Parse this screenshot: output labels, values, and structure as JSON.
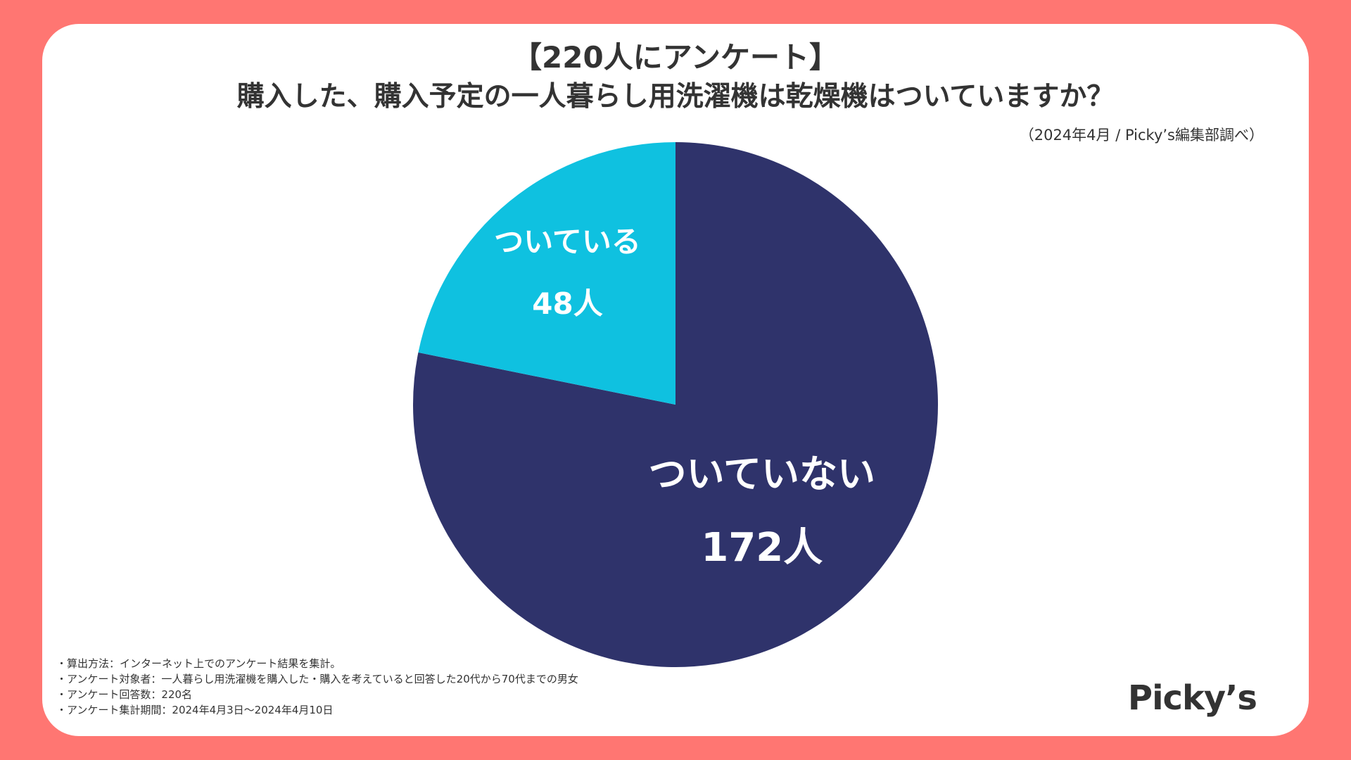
{
  "header": {
    "title_line1": "【220人にアンケート】",
    "title_line2": "購入した、購入予定の一人暮らし用洗濯機は乾燥機はついていますか？",
    "source": "（2024年4月 / Picky’s編集部調べ）"
  },
  "chart_data": {
    "type": "pie",
    "title": "購入した、購入予定の一人暮らし用洗濯機は乾燥機はついていますか？",
    "slices": [
      {
        "label": "ついていない",
        "value": 172,
        "value_label": "172人",
        "color": "#2f336b"
      },
      {
        "label": "ついている",
        "value": 48,
        "value_label": "48人",
        "color": "#0fc1e0"
      }
    ],
    "total": 220,
    "start": "12 o'clock, clockwise"
  },
  "notes": [
    "・算出方法：インターネット上でのアンケート結果を集計。",
    "・アンケート対象者：一人暮らし用洗濯機を購入した・購入を考えていると回答した20代から70代までの男女",
    "・アンケート回答数：220名",
    "・アンケート集計期間：2024年4月3日〜2024年4月10日"
  ],
  "logo": "Picky’s",
  "colors": {
    "background": "#ff7672",
    "card": "#ffffff",
    "text": "#333333"
  }
}
